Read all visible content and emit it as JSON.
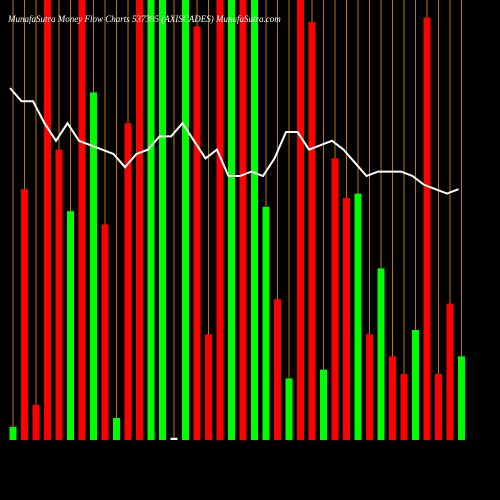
{
  "chart_data": {
    "type": "money-flow",
    "title": "MunafaSutra Money Flow Charts 537395 (AXISCADES) MunafaSutra.com",
    "ylim": [
      0,
      100
    ],
    "bar_colors": [
      "#00ff00",
      "#ff0000",
      "#ff0000",
      "#ff0000",
      "#ff0000",
      "#00ff00",
      "#ff0000",
      "#00ff00",
      "#ff0000",
      "#00ff00",
      "#ff0000",
      "#ff0000",
      "#00ff00",
      "#00ff00",
      "#ffffff",
      "#00ff00",
      "#ff0000",
      "#ff0000",
      "#ff0000",
      "#00ff00",
      "#ff0000",
      "#00ff00",
      "#00ff00",
      "#ff0000",
      "#00ff00",
      "#ff0000",
      "#ff0000",
      "#00ff00",
      "#ff0000",
      "#ff0000",
      "#00ff00",
      "#ff0000",
      "#00ff00",
      "#ff0000",
      "#ff0000",
      "#00ff00",
      "#ff0000",
      "#ff0000",
      "#ff0000",
      "#00ff00"
    ],
    "values": [
      3,
      57,
      8,
      100,
      66,
      52,
      100,
      79,
      49,
      5,
      72,
      100,
      100,
      100,
      0.5,
      100,
      94,
      24,
      100,
      100,
      100,
      100,
      53,
      32,
      14,
      100,
      95,
      16,
      64,
      55,
      56,
      24,
      39,
      19,
      15,
      25,
      96,
      15,
      31,
      19
    ],
    "line": {
      "color": "#ffffff",
      "values": [
        80,
        77,
        77,
        72,
        68,
        72,
        68,
        67,
        66,
        65,
        62,
        65,
        66,
        69,
        69,
        72,
        68,
        64,
        66,
        60,
        60,
        61,
        60,
        64,
        70,
        70,
        66,
        67,
        68,
        66,
        63,
        60,
        61,
        61,
        61,
        60,
        58,
        57,
        56,
        57
      ]
    },
    "guide_color": "#b8760b"
  }
}
